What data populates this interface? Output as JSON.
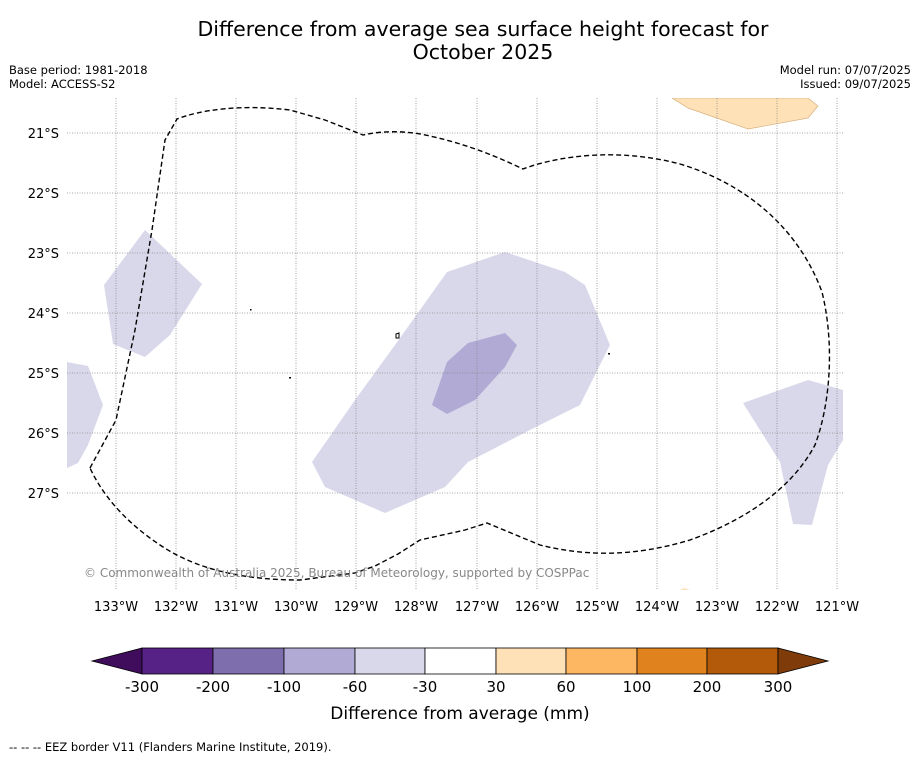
{
  "title_line1": "Difference from average sea surface height forecast for",
  "title_line2": "October 2025",
  "base_period": "Base period: 1981-2018",
  "model": "Model: ACCESS-S2",
  "model_run": "Model run: 07/07/2025",
  "issued": "Issued: 09/07/2025",
  "copyright": "© Commonwealth of Australia 2025, Bureau of Meteorology, supported by COSPPac",
  "latitude_labels": [
    "21°S",
    "22°S",
    "23°S",
    "24°S",
    "25°S",
    "26°S",
    "27°S"
  ],
  "longitude_labels": [
    "133°W",
    "132°W",
    "131°W",
    "130°W",
    "129°W",
    "128°W",
    "127°W",
    "126°W",
    "125°W",
    "124°W",
    "123°W",
    "122°W",
    "121°W"
  ],
  "legend": {
    "title": "Difference from average (mm)",
    "tick_labels": [
      "-300",
      "-200",
      "-100",
      "-60",
      "-30",
      "30",
      "60",
      "100",
      "200",
      "300"
    ],
    "colors": [
      "#3f0d5c",
      "#572286",
      "#7e6ead",
      "#b0aad4",
      "#d9d8eb",
      "#ffffff",
      "#fee1b6",
      "#fdb662",
      "#e0821d",
      "#b25a0a",
      "#7f3c0a"
    ]
  },
  "footer": "--  --  -- EEZ border V11 (Flanders Marine Institute, 2019)."
}
